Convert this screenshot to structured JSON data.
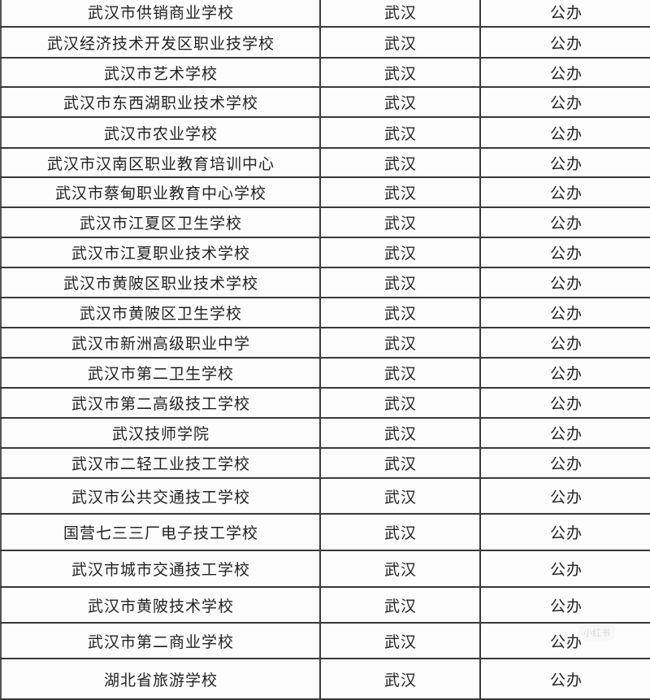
{
  "table": {
    "rows": [
      {
        "name": "武汉市供销商业学校",
        "city": "武汉",
        "type": "公办"
      },
      {
        "name": "武汉经济技术开发区职业技学校",
        "city": "武汉",
        "type": "公办"
      },
      {
        "name": "武汉市艺术学校",
        "city": "武汉",
        "type": "公办"
      },
      {
        "name": "武汉市东西湖职业技术学校",
        "city": "武汉",
        "type": "公办"
      },
      {
        "name": "武汉市农业学校",
        "city": "武汉",
        "type": "公办"
      },
      {
        "name": "武汉市汉南区职业教育培训中心",
        "city": "武汉",
        "type": "公办"
      },
      {
        "name": "武汉市蔡甸职业教育中心学校",
        "city": "武汉",
        "type": "公办"
      },
      {
        "name": "武汉市江夏区卫生学校",
        "city": "武汉",
        "type": "公办"
      },
      {
        "name": "武汉市江夏职业技术学校",
        "city": "武汉",
        "type": "公办"
      },
      {
        "name": "武汉市黄陂区职业技术学校",
        "city": "武汉",
        "type": "公办"
      },
      {
        "name": "武汉市黄陂区卫生学校",
        "city": "武汉",
        "type": "公办"
      },
      {
        "name": "武汉市新洲高级职业中学",
        "city": "武汉",
        "type": "公办"
      },
      {
        "name": "武汉市第二卫生学校",
        "city": "武汉",
        "type": "公办"
      },
      {
        "name": "武汉市第二高级技工学校",
        "city": "武汉",
        "type": "公办"
      },
      {
        "name": "武汉技师学院",
        "city": "武汉",
        "type": "公办"
      },
      {
        "name": "武汉市二轻工业技工学校",
        "city": "武汉",
        "type": "公办"
      },
      {
        "name": "武汉市公共交通技工学校",
        "city": "武汉",
        "type": "公办"
      },
      {
        "name": "国营七三三厂电子技工学校",
        "city": "武汉",
        "type": "公办"
      },
      {
        "name": "武汉市城市交通技工学校",
        "city": "武汉",
        "type": "公办"
      },
      {
        "name": "武汉市黄陂技术学校",
        "city": "武汉",
        "type": "公办"
      },
      {
        "name": "武汉市第二商业学校",
        "city": "武汉",
        "type": "公办"
      },
      {
        "name": "湖北省旅游学校",
        "city": "武汉",
        "type": "公办"
      }
    ]
  },
  "watermark": {
    "logo_text": "小红书"
  }
}
